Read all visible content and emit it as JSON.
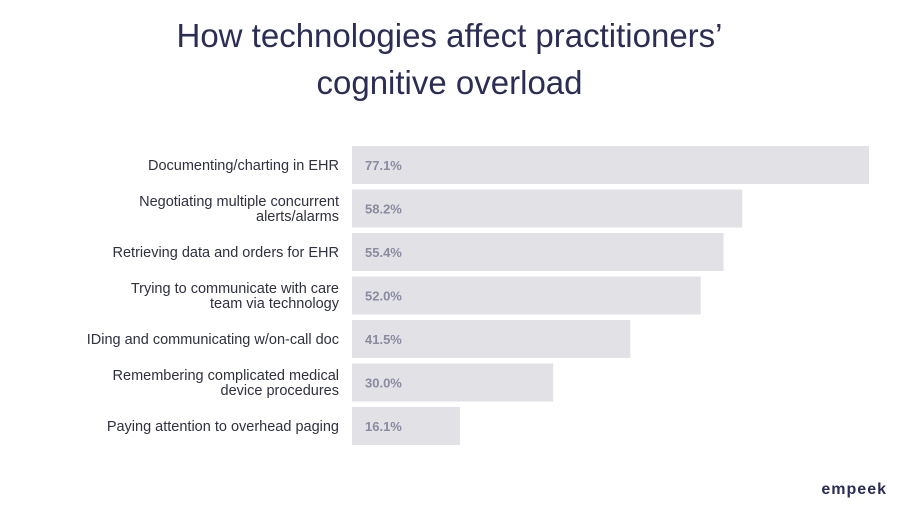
{
  "chart_data": {
    "type": "bar",
    "orientation": "horizontal",
    "title_lines": [
      "How technologies affect practitioners’",
      "cognitive overload"
    ],
    "categories": [
      [
        "Documenting/charting in EHR"
      ],
      [
        "Negotiating multiple concurrent",
        "alerts/alarms"
      ],
      [
        "Retrieving data and orders for EHR"
      ],
      [
        "Trying to communicate with care",
        "team via technology"
      ],
      [
        "IDing and communicating w/on-call doc"
      ],
      [
        "Remembering complicated medical",
        "device procedures"
      ],
      [
        "Paying attention to overhead paging"
      ]
    ],
    "values": [
      77.1,
      58.2,
      55.4,
      52.0,
      41.5,
      30.0,
      16.1
    ],
    "value_labels": [
      "77.1%",
      "58.2%",
      "55.4%",
      "52.0%",
      "41.5%",
      "30.0%",
      "16.1%"
    ],
    "unit": "%",
    "xlim": [
      0,
      77.1
    ],
    "bar_color": "#e1e1e6",
    "text_color": "#2f3040",
    "value_color": "#8a8aa0"
  },
  "brand": {
    "logo_text": "empeek",
    "color": "#2b2d55"
  }
}
